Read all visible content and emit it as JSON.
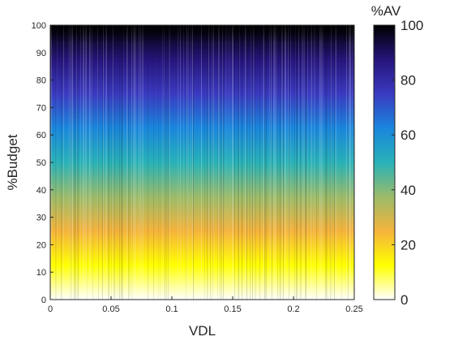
{
  "chart_data": {
    "type": "heatmap",
    "title": "",
    "xlabel": "VDL",
    "ylabel": "%Budget",
    "xlim": [
      0,
      0.25
    ],
    "ylim": [
      0,
      100
    ],
    "x_ticks": [
      "0",
      "0.05",
      "0.1",
      "0.15",
      "0.2",
      "0.25"
    ],
    "y_ticks": [
      "0",
      "10",
      "20",
      "30",
      "40",
      "50",
      "60",
      "70",
      "80",
      "90",
      "100"
    ],
    "value_description": "Color encodes %AV, which rises roughly with %Budget across all VDL values; fine vertical striping indicates noisy variation along VDL.",
    "colorbar": {
      "title": "%AV",
      "range": [
        0,
        100
      ],
      "ticks": [
        "0",
        "20",
        "40",
        "60",
        "80",
        "100"
      ],
      "colors": [
        "#ffffff",
        "#ffff00",
        "#f5b33c",
        "#9bbb6a",
        "#28b2b8",
        "#1a86dc",
        "#3a3ac0",
        "#25157a",
        "#000000"
      ]
    }
  }
}
